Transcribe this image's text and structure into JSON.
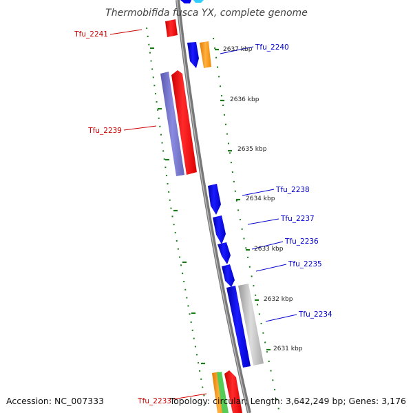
{
  "map": {
    "title": "Thermobifida fusca YX, complete genome",
    "accession": "Accession: NC_007333",
    "summary": "Topology: circular; Length: 3,642,249 bp; Genes: 3,176"
  },
  "colors": {
    "forward_label": "#0000cc",
    "reverse_label": "#cc0000",
    "forward_gene": "#0000ee",
    "reverse_gene": "#ee0000",
    "tick": "#1a7a1a",
    "backbone": "#888888",
    "orange_gene": "#ff9900",
    "gray_gene": "#b4b4b4",
    "purple_gene": "#7777cc",
    "cyan_gene": "#33ccff",
    "green_gene": "#55cc55"
  },
  "position_labels": [
    "2637 kbp",
    "2636 kbp",
    "2635 kbp",
    "2634 kbp",
    "2633 kbp",
    "2632 kbp",
    "2631 kbp"
  ],
  "genes": [
    {
      "id": "Tfu_2241",
      "strand": "reverse",
      "color": "red"
    },
    {
      "id": "Tfu_2240",
      "strand": "forward",
      "color": "blue"
    },
    {
      "id": "Tfu_2239",
      "strand": "reverse",
      "color": "red"
    },
    {
      "id": "Tfu_2238",
      "strand": "forward",
      "color": "blue"
    },
    {
      "id": "Tfu_2237",
      "strand": "forward",
      "color": "blue"
    },
    {
      "id": "Tfu_2236",
      "strand": "forward",
      "color": "blue"
    },
    {
      "id": "Tfu_2235",
      "strand": "forward",
      "color": "blue"
    },
    {
      "id": "Tfu_2234",
      "strand": "forward",
      "color": "blue"
    },
    {
      "id": "Tfu_2233",
      "strand": "reverse",
      "color": "red"
    }
  ]
}
